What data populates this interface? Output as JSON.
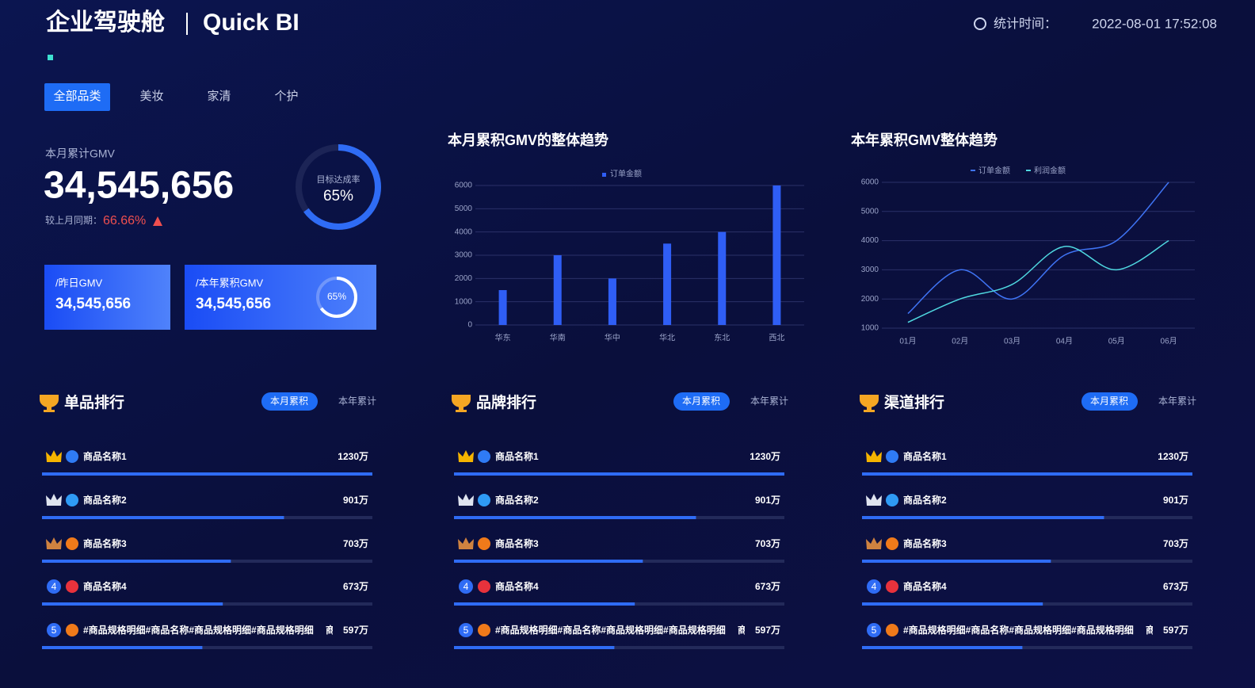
{
  "header": {
    "title": "企业驾驶舱",
    "subtitle": "Quick BI",
    "time_label": "统计时间：",
    "time": "2022-08-01 17:52:08"
  },
  "tabs": {
    "items": [
      "全部品类",
      "美妆",
      "家清",
      "个护"
    ],
    "active": 0
  },
  "summary": {
    "label": "本月累计GMV",
    "value": "34,545,656",
    "compare_label": "较上月同期：",
    "compare_value": "66.66%",
    "target": {
      "label": "目标达成率",
      "value": 65,
      "value_label": "65%"
    }
  },
  "cards": [
    {
      "label": "/昨日GMV",
      "value": "34,545,656"
    },
    {
      "label": "/本年累积GMV",
      "value": "34,545,656",
      "gauge": {
        "value": 65,
        "value_label": "65%"
      }
    }
  ],
  "chart_data": [
    {
      "type": "bar",
      "title": "本月累积GMV的整体趋势",
      "categories": [
        "华东",
        "华南",
        "华中",
        "华北",
        "东北",
        "西北"
      ],
      "series": [
        {
          "name": "订单金额",
          "color": "#2f5ef5",
          "values": [
            1500,
            3000,
            2000,
            3500,
            4000,
            6000
          ]
        }
      ],
      "ylim": [
        0,
        6000
      ],
      "yticks": [
        0,
        1000,
        2000,
        3000,
        4000,
        5000,
        6000
      ],
      "grid": true
    },
    {
      "type": "line",
      "title": "本年累积GMV整体趋势",
      "categories": [
        "01月",
        "02月",
        "03月",
        "04月",
        "05月",
        "06月"
      ],
      "series": [
        {
          "name": "订单金额",
          "color": "#3f74f5",
          "values": [
            1500,
            3000,
            2000,
            3500,
            4000,
            6000
          ]
        },
        {
          "name": "利润金额",
          "color": "#4fd8e0",
          "values": [
            1200,
            2000,
            2500,
            3800,
            3000,
            4000
          ]
        }
      ],
      "ylim": [
        1000,
        6000
      ],
      "yticks": [
        1000,
        2000,
        3000,
        4000,
        5000,
        6000
      ],
      "grid": true
    }
  ],
  "rankings": [
    {
      "title": "单品排行",
      "toggle": [
        "本月累积",
        "本年累计"
      ],
      "active": 0,
      "items": [
        {
          "name": "商品名称1",
          "value": 1230,
          "value_label": "1230万"
        },
        {
          "name": "商品名称2",
          "value": 901,
          "value_label": "901万"
        },
        {
          "name": "商品名称3",
          "value": 703,
          "value_label": "703万"
        },
        {
          "rank": 4,
          "name": "商品名称4",
          "value": 673,
          "value_label": "673万"
        },
        {
          "rank": 5,
          "name": "#商品规格明细#商品名称#商品规格明细#商品规格明细　 商品",
          "value": 597,
          "value_label": "597万"
        }
      ]
    },
    {
      "title": "品牌排行",
      "toggle": [
        "本月累积",
        "本年累计"
      ],
      "active": 0,
      "items": [
        {
          "name": "商品名称1",
          "value": 1230,
          "value_label": "1230万"
        },
        {
          "name": "商品名称2",
          "value": 901,
          "value_label": "901万"
        },
        {
          "name": "商品名称3",
          "value": 703,
          "value_label": "703万"
        },
        {
          "rank": 4,
          "name": "商品名称4",
          "value": 673,
          "value_label": "673万"
        },
        {
          "rank": 5,
          "name": "#商品规格明细#商品名称#商品规格明细#商品规格明细　 商品",
          "value": 597,
          "value_label": "597万"
        }
      ]
    },
    {
      "title": "渠道排行",
      "toggle": [
        "本月累积",
        "本年累计"
      ],
      "active": 0,
      "items": [
        {
          "name": "商品名称1",
          "value": 1230,
          "value_label": "1230万"
        },
        {
          "name": "商品名称2",
          "value": 901,
          "value_label": "901万"
        },
        {
          "name": "商品名称3",
          "value": 703,
          "value_label": "703万"
        },
        {
          "rank": 4,
          "name": "商品名称4",
          "value": 673,
          "value_label": "673万"
        },
        {
          "rank": 5,
          "name": "#商品规格明细#商品名称#商品规格明细#商品规格明细　 商品",
          "value": 597,
          "value_label": "597万"
        }
      ]
    }
  ]
}
